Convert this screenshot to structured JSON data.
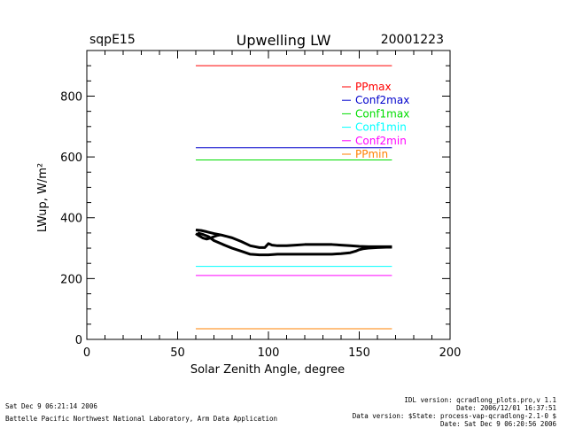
{
  "header": {
    "site": "sqpE15",
    "title": "Upwelling LW",
    "date": "20001223"
  },
  "footer": {
    "left_line1": "Sat Dec  9 06:21:14 2006",
    "left_line2": "Battelle Pacific Northwest National Laboratory, Arm Data Application",
    "right_lines": [
      "IDL version: qcradlong_plots.pro,v 1.1",
      "Date: 2006/12/01 16:37:51",
      "Data version: $State: process-vap-qcradlong-2.1-0 $",
      "Date: Sat Dec  9 06:20:56 2006"
    ]
  },
  "chart_data": {
    "type": "line",
    "title": "Upwelling LW",
    "xlabel": "Solar Zenith Angle, degree",
    "ylabel": "LWup, W/m²",
    "xlim": [
      0,
      200
    ],
    "ylim": [
      0,
      950
    ],
    "x_ticks": [
      0,
      50,
      100,
      150,
      200
    ],
    "y_ticks": [
      0,
      200,
      400,
      600,
      800
    ],
    "grid": false,
    "legend_position": "top-right",
    "limit_lines": [
      {
        "name": "PPmax",
        "color": "#ff0000",
        "value": 900,
        "x": [
          60,
          168
        ]
      },
      {
        "name": "Conf2max",
        "color": "#0000cc",
        "value": 630,
        "x": [
          60,
          168
        ]
      },
      {
        "name": "Conf1max",
        "color": "#00dd00",
        "value": 590,
        "x": [
          60,
          168
        ]
      },
      {
        "name": "Conf1min",
        "color": "#00ffff",
        "value": 240,
        "x": [
          60,
          168
        ]
      },
      {
        "name": "Conf2min",
        "color": "#ff00ff",
        "value": 210,
        "x": [
          60,
          168
        ]
      },
      {
        "name": "PPmin",
        "color": "#ff8000",
        "value": 35,
        "x": [
          60,
          168
        ]
      }
    ],
    "series": [
      {
        "color": "#000000",
        "x": [
          61,
          64,
          67,
          70,
          75,
          80,
          85,
          90,
          95,
          100,
          105,
          110,
          115,
          120,
          125,
          130,
          135,
          140,
          145,
          148,
          150,
          152,
          155,
          160,
          165,
          168
        ],
        "y": [
          350,
          345,
          338,
          325,
          312,
          300,
          290,
          280,
          278,
          278,
          280,
          280,
          280,
          280,
          280,
          280,
          280,
          282,
          285,
          290,
          295,
          298,
          300,
          302,
          303,
          303
        ]
      },
      {
        "color": "#000000",
        "x": [
          60,
          63,
          66,
          70,
          75,
          80,
          85,
          90,
          95,
          98,
          100,
          102,
          105,
          110,
          115,
          120,
          125,
          130,
          135,
          140,
          145,
          150,
          155,
          160,
          165,
          168
        ],
        "y": [
          360,
          358,
          354,
          348,
          342,
          334,
          322,
          308,
          302,
          302,
          315,
          310,
          308,
          308,
          310,
          312,
          312,
          312,
          312,
          310,
          308,
          306,
          305,
          305,
          305,
          305
        ]
      },
      {
        "color": "#000000",
        "x": [
          60,
          62,
          64,
          66,
          68,
          70,
          72,
          74
        ],
        "y": [
          348,
          340,
          333,
          330,
          333,
          338,
          342,
          344
        ]
      }
    ]
  }
}
